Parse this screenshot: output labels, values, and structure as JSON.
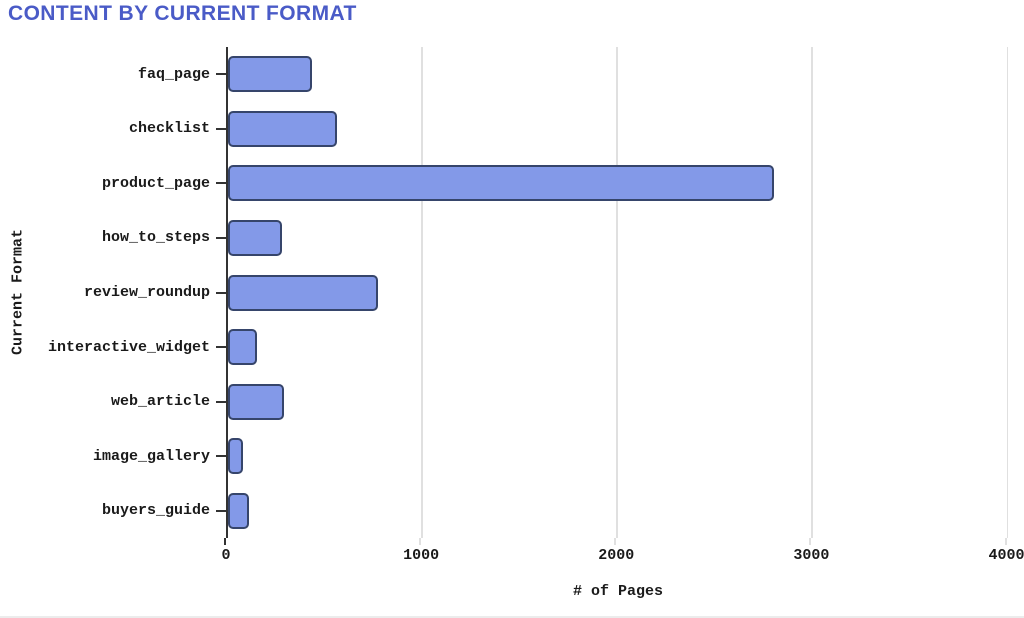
{
  "title": "CONTENT BY CURRENT FORMAT",
  "chart_data": {
    "type": "bar",
    "orientation": "horizontal",
    "title": "CONTENT BY CURRENT FORMAT",
    "categories": [
      "faq_page",
      "checklist",
      "product_page",
      "how_to_steps",
      "review_roundup",
      "interactive_widget",
      "web_article",
      "image_gallery",
      "buyers_guide"
    ],
    "values": [
      430,
      560,
      2800,
      275,
      770,
      150,
      285,
      75,
      110
    ],
    "xlabel": "# of Pages",
    "ylabel": "Current Format",
    "xlim": [
      0,
      4000
    ],
    "xticks": [
      0,
      1000,
      2000,
      3000,
      4000
    ],
    "grid": "vertical",
    "legend": "none",
    "colors": {
      "title": "#4A5BC7",
      "bar_fill": "#8399E8",
      "bar_border": "#36456B",
      "gridline": "#E0E0E0",
      "axis": "#333333",
      "text": "#1A1A1A"
    }
  }
}
